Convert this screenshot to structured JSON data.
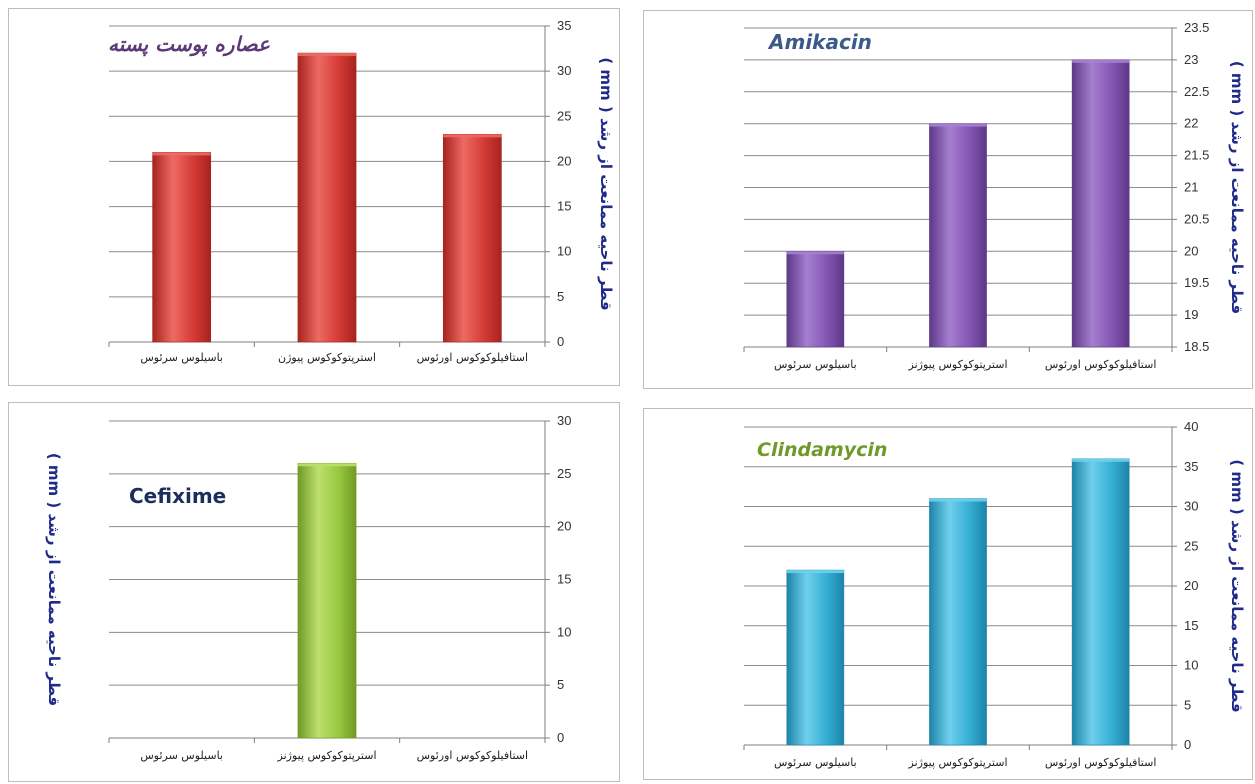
{
  "ylabel_text": "قطر ناحیه ممانعت از رشد ( mm )",
  "chart_data": [
    {
      "type": "bar",
      "title": "عصاره پوست پسته",
      "categories": [
        "باسیلوس سرئوس",
        "استرپتوکوکوس پیوژن",
        "استافیلوکوکوس اورئوس"
      ],
      "values": [
        21,
        32,
        23
      ],
      "ylim": [
        0,
        35
      ],
      "yticks": [
        0,
        5,
        10,
        15,
        20,
        25,
        30,
        35
      ],
      "ylabel": "قطر ناحیه ممانعت از رشد ( mm )",
      "bar_color": "#d43b35",
      "bar_dark": "#a8231f",
      "bar_light": "#ee6a64",
      "title_color": "#5a3a78",
      "grid": true
    },
    {
      "type": "bar",
      "title": "Amikacin",
      "categories": [
        "باسیلوس سرئوس",
        "استرپتوکوکوس پیوژنز",
        "استافیلوکوکوس اورئوس"
      ],
      "values": [
        20,
        22,
        23
      ],
      "ylim": [
        18.5,
        23.5
      ],
      "yticks": [
        18.5,
        19,
        19.5,
        20,
        20.5,
        21,
        21.5,
        22,
        22.5,
        23,
        23.5
      ],
      "ylabel": "قطر ناحیه ممانعت از رشد ( mm )",
      "bar_color": "#8456b3",
      "bar_dark": "#5e3787",
      "bar_light": "#a57fd0",
      "title_color": "#3b5a8a",
      "grid": true
    },
    {
      "type": "bar",
      "title": "Cefixime",
      "categories": [
        "باسیلوس سرئوس",
        "استرپتوکوکوس پیوژنز",
        "استافیلوکوکوس اورئوس"
      ],
      "values": [
        0,
        26,
        0
      ],
      "ylim": [
        0,
        30
      ],
      "yticks": [
        0,
        5,
        10,
        15,
        20,
        25,
        30
      ],
      "ylabel": "قطر ناحیه ممانعت از رشد ( mm )",
      "bar_color": "#98c83f",
      "bar_dark": "#6f9a25",
      "bar_light": "#bde06d",
      "title_color": "#1c2f5c",
      "grid": true
    },
    {
      "type": "bar",
      "title": "Clindamycin",
      "categories": [
        "باسیلوس سرئوس",
        "استرپتوکوکوس پیوژنز",
        "استافیلوکوکوس اورئوس"
      ],
      "values": [
        22,
        31,
        36
      ],
      "ylim": [
        0,
        40
      ],
      "yticks": [
        0,
        5,
        10,
        15,
        20,
        25,
        30,
        35,
        40
      ],
      "ylabel": "قطر ناحیه ممانعت از رشد ( mm )",
      "bar_color": "#34aed4",
      "bar_dark": "#1d84a8",
      "bar_light": "#6fd0ec",
      "title_color": "#6f9a2a",
      "grid": true
    }
  ]
}
